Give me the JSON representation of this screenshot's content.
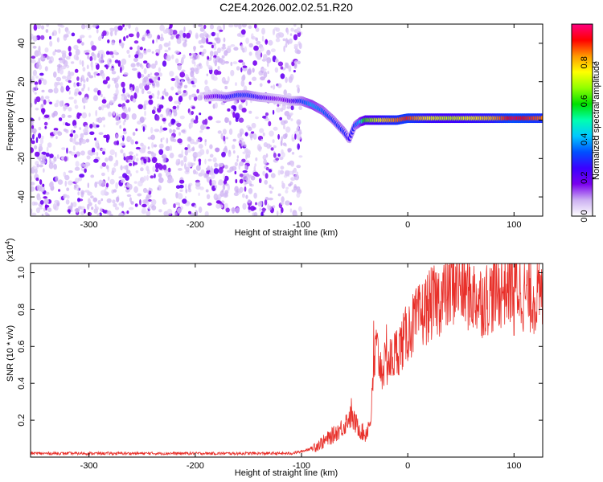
{
  "title": "C2E4.2026.002.02.51.R20",
  "chart_data": [
    {
      "type": "heatmap",
      "name": "spectrogram",
      "xlabel": "Height of straight line (km)",
      "ylabel": "Frequency (Hz)",
      "xlim": [
        -355,
        127
      ],
      "ylim": [
        -50,
        50
      ],
      "xticks": [
        -300,
        -200,
        -100,
        0,
        100
      ],
      "xtick_labels": [
        "-300",
        "-200",
        "-100",
        "0",
        "100"
      ],
      "yticks": [
        -40,
        -20,
        0,
        20,
        40
      ],
      "ytick_labels": [
        "-40",
        "-20",
        "0",
        "20",
        "40"
      ],
      "noise_region_x": [
        -355,
        -100
      ],
      "signal_track": {
        "x": [
          -190,
          -180,
          -170,
          -160,
          -150,
          -140,
          -130,
          -120,
          -110,
          -100,
          -90,
          -80,
          -70,
          -60,
          -55,
          -50,
          -45,
          -40,
          -30,
          -20,
          -10,
          0,
          20,
          40,
          60,
          80,
          100,
          127
        ],
        "frequency": [
          12,
          12.5,
          12,
          13,
          13,
          12,
          11.5,
          11,
          10,
          10,
          8,
          5,
          0,
          -6,
          -10,
          -3,
          -1,
          0,
          0,
          0,
          0,
          1,
          1,
          1,
          1,
          1,
          1,
          1
        ],
        "amplitude": [
          0.15,
          0.2,
          0.25,
          0.3,
          0.3,
          0.25,
          0.2,
          0.15,
          0.2,
          0.3,
          0.4,
          0.35,
          0.3,
          0.3,
          0.25,
          0.3,
          0.4,
          0.6,
          0.7,
          0.8,
          0.85,
          0.9,
          0.75,
          0.7,
          0.75,
          0.8,
          0.95,
          0.85
        ]
      },
      "colorbar": {
        "label": "Normalized spectral amplitude",
        "range": [
          0,
          1
        ],
        "ticks": [
          0,
          0.2,
          0.4,
          0.6,
          0.8
        ],
        "tick_labels": [
          "0.0",
          "0.2",
          "0.4",
          "0.6",
          "0.8"
        ],
        "colors": [
          "#ffffff",
          "#ccb0f2",
          "#7a00ee",
          "#3b00ff",
          "#0050ff",
          "#00c8ff",
          "#00ffb0",
          "#00e000",
          "#90ff00",
          "#ffff00",
          "#ff9900",
          "#ff0000",
          "#ff0080"
        ]
      }
    },
    {
      "type": "line",
      "name": "snr",
      "xlabel": "Height of straight line (km)",
      "ylabel": "SNR (10 * v/v)",
      "y_multiplier": "(x10",
      "y_multiplier_exponent": "4",
      "y_multiplier_close": ")",
      "xlim": [
        -355,
        127
      ],
      "ylim": [
        0,
        1.05
      ],
      "xticks": [
        -300,
        -200,
        -100,
        0,
        100
      ],
      "xtick_labels": [
        "-300",
        "-200",
        "-100",
        "0",
        "100"
      ],
      "yticks": [
        0.2,
        0.4,
        0.6,
        0.8,
        1.0
      ],
      "ytick_labels": [
        "0.2",
        "0.4",
        "0.6",
        "0.8",
        "1.0"
      ],
      "color": "#e8302a",
      "series": [
        {
          "name": "SNR",
          "x": [
            -355,
            -300,
            -250,
            -200,
            -150,
            -110,
            -100,
            -90,
            -80,
            -70,
            -60,
            -55,
            -50,
            -45,
            -40,
            -35,
            -30,
            -25,
            -20,
            -15,
            -10,
            -5,
            0,
            5,
            10,
            20,
            30,
            40,
            45,
            50,
            60,
            70,
            80,
            90,
            100,
            110,
            120,
            127
          ],
          "y": [
            0.02,
            0.02,
            0.02,
            0.02,
            0.02,
            0.02,
            0.03,
            0.05,
            0.08,
            0.12,
            0.17,
            0.22,
            0.19,
            0.15,
            0.12,
            0.2,
            0.6,
            0.48,
            0.5,
            0.53,
            0.58,
            0.62,
            0.68,
            0.72,
            0.75,
            0.82,
            0.86,
            0.9,
            0.95,
            0.92,
            0.88,
            0.85,
            0.88,
            0.92,
            0.95,
            0.88,
            0.87,
            0.86
          ]
        }
      ],
      "spikes": [
        {
          "x": -53,
          "y": 0.32
        },
        {
          "x": -32,
          "y": 0.74
        },
        {
          "x": -20,
          "y": 0.72
        },
        {
          "x": 100,
          "y": 1.04
        },
        {
          "x": 100,
          "y": 0.66
        }
      ]
    }
  ]
}
